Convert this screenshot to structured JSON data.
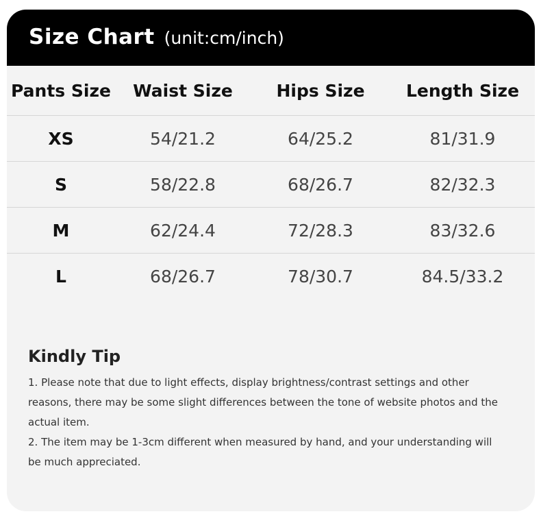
{
  "header": {
    "title": "Size Chart",
    "unit": "(unit:cm/inch)"
  },
  "table": {
    "columns": [
      "Pants Size",
      "Waist Size",
      "Hips Size",
      "Length Size"
    ],
    "rows": [
      [
        "XS",
        "54/21.2",
        "64/25.2",
        "81/31.9"
      ],
      [
        "S",
        "58/22.8",
        "68/26.7",
        "82/32.3"
      ],
      [
        "M",
        "62/24.4",
        "72/28.3",
        "83/32.6"
      ],
      [
        "L",
        "68/26.7",
        "78/30.7",
        "84.5/33.2"
      ]
    ]
  },
  "tip": {
    "title": "Kindly Tip",
    "lines": [
      "1. Please note that due to light effects, display brightness/contrast settings and other reasons, there may be some slight differences between the tone of website photos and the actual item.",
      "2. The item may be 1-3cm different when measured by hand, and your understanding will be much appreciated."
    ]
  },
  "colors": {
    "header_bg": "#000000",
    "card_bg": "#f3f3f3"
  }
}
